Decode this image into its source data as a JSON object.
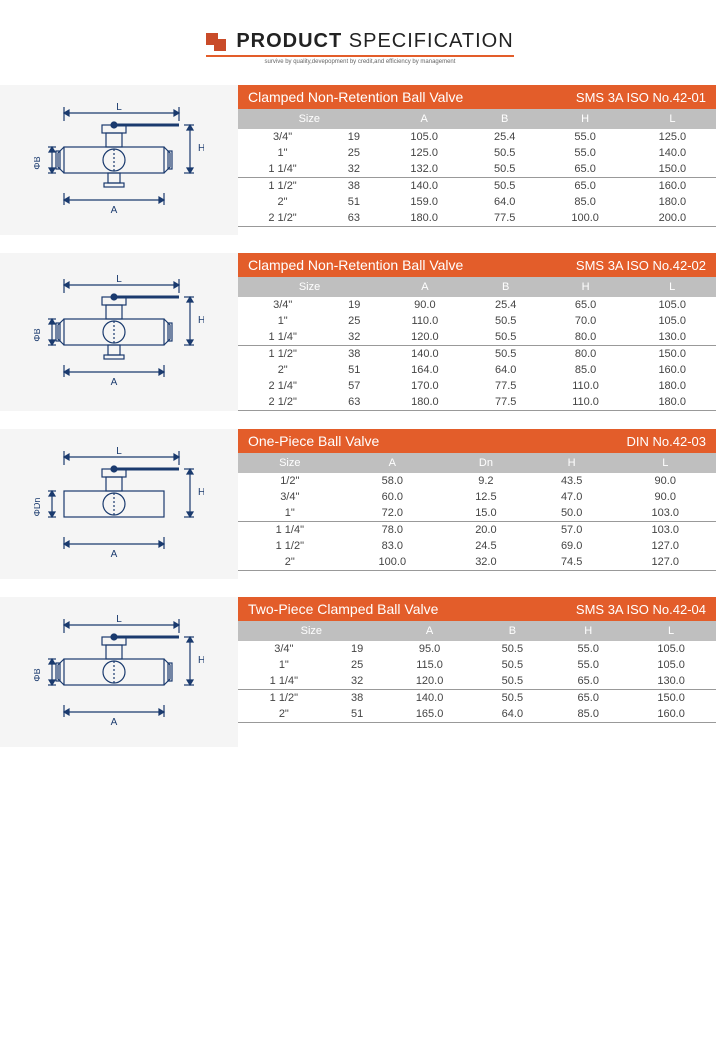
{
  "header": {
    "title_bold": "PRODUCT",
    "title_light": "SPECIFICATION",
    "subtitle": "survive by quality,devepopment by credit,and efficiency by management",
    "logo_color": "#c94b29",
    "underline_color": "#e35d2a"
  },
  "colors": {
    "title_bar_bg": "#e35d2a",
    "title_bar_fg": "#ffffff",
    "header_row_bg": "#bfbfbf",
    "header_row_fg": "#ffffff",
    "cell_fg": "#444444",
    "diagram_bg": "#f5f5f5",
    "divider": "#999999"
  },
  "sections": [
    {
      "title": "Clamped Non-Retention Ball Valve",
      "standards": "SMS  3A  ISO  No.42-01",
      "diagram_dim_label": "ΦB",
      "columns": [
        "Size",
        "",
        "A",
        "B",
        "H",
        "L"
      ],
      "divider_after_row": 2,
      "rows": [
        [
          "3/4\"",
          "19",
          "105.0",
          "25.4",
          "55.0",
          "125.0"
        ],
        [
          "1\"",
          "25",
          "125.0",
          "50.5",
          "55.0",
          "140.0"
        ],
        [
          "1 1/4\"",
          "32",
          "132.0",
          "50.5",
          "65.0",
          "150.0"
        ],
        [
          "1 1/2\"",
          "38",
          "140.0",
          "50.5",
          "65.0",
          "160.0"
        ],
        [
          "2\"",
          "51",
          "159.0",
          "64.0",
          "85.0",
          "180.0"
        ],
        [
          "2 1/2\"",
          "63",
          "180.0",
          "77.5",
          "100.0",
          "200.0"
        ]
      ]
    },
    {
      "title": "Clamped Non-Retention Ball Valve",
      "standards": "SMS  3A  ISO  No.42-02",
      "diagram_dim_label": "ΦB",
      "columns": [
        "Size",
        "",
        "A",
        "B",
        "H",
        "L"
      ],
      "divider_after_row": 2,
      "rows": [
        [
          "3/4\"",
          "19",
          "90.0",
          "25.4",
          "65.0",
          "105.0"
        ],
        [
          "1\"",
          "25",
          "110.0",
          "50.5",
          "70.0",
          "105.0"
        ],
        [
          "1 1/4\"",
          "32",
          "120.0",
          "50.5",
          "80.0",
          "130.0"
        ],
        [
          "1 1/2\"",
          "38",
          "140.0",
          "50.5",
          "80.0",
          "150.0"
        ],
        [
          "2\"",
          "51",
          "164.0",
          "64.0",
          "85.0",
          "160.0"
        ],
        [
          "2 1/4\"",
          "57",
          "170.0",
          "77.5",
          "110.0",
          "180.0"
        ],
        [
          "2 1/2\"",
          "63",
          "180.0",
          "77.5",
          "110.0",
          "180.0"
        ]
      ]
    },
    {
      "title": "One-Piece Ball Valve",
      "standards": "DIN   No.42-03",
      "diagram_dim_label": "ΦDn",
      "columns": [
        "Size",
        "A",
        "Dn",
        "H",
        "L"
      ],
      "divider_after_row": 2,
      "rows": [
        [
          "1/2\"",
          "58.0",
          "9.2",
          "43.5",
          "90.0"
        ],
        [
          "3/4\"",
          "60.0",
          "12.5",
          "47.0",
          "90.0"
        ],
        [
          "1\"",
          "72.0",
          "15.0",
          "50.0",
          "103.0"
        ],
        [
          "1 1/4\"",
          "78.0",
          "20.0",
          "57.0",
          "103.0"
        ],
        [
          "1 1/2\"",
          "83.0",
          "24.5",
          "69.0",
          "127.0"
        ],
        [
          "2\"",
          "100.0",
          "32.0",
          "74.5",
          "127.0"
        ]
      ]
    },
    {
      "title": "Two-Piece Clamped Ball Valve",
      "standards": "SMS  3A  ISO  No.42-04",
      "diagram_dim_label": "ΦB",
      "columns": [
        "Size",
        "",
        "A",
        "B",
        "H",
        "L"
      ],
      "divider_after_row": 2,
      "rows": [
        [
          "3/4\"",
          "19",
          "95.0",
          "50.5",
          "55.0",
          "105.0"
        ],
        [
          "1\"",
          "25",
          "115.0",
          "50.5",
          "55.0",
          "105.0"
        ],
        [
          "1 1/4\"",
          "32",
          "120.0",
          "50.5",
          "65.0",
          "130.0"
        ],
        [
          "1 1/2\"",
          "38",
          "140.0",
          "50.5",
          "65.0",
          "150.0"
        ],
        [
          "2\"",
          "51",
          "165.0",
          "64.0",
          "85.0",
          "160.0"
        ]
      ]
    }
  ]
}
